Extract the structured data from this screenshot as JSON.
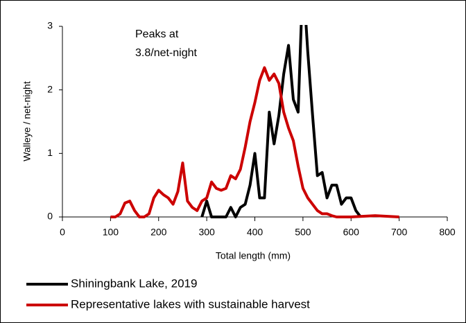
{
  "chart_data": {
    "type": "line",
    "xlabel": "Total length (mm)",
    "ylabel": "Walleye / net-night",
    "annotation": [
      "Peaks at",
      "3.8/net-night"
    ],
    "xlim": [
      0,
      800
    ],
    "xticks": [
      0,
      100,
      200,
      300,
      400,
      500,
      600,
      700,
      800
    ],
    "ylim": [
      0,
      3
    ],
    "yticks": [
      0,
      1,
      2,
      3
    ],
    "series": [
      {
        "name": "Shiningbank Lake, 2019",
        "color": "#000000",
        "x": [
          290,
          300,
          310,
          320,
          330,
          340,
          350,
          360,
          370,
          380,
          390,
          400,
          410,
          420,
          430,
          440,
          450,
          460,
          470,
          480,
          490,
          500,
          510,
          520,
          530,
          540,
          550,
          560,
          570,
          580,
          590,
          600,
          610,
          620
        ],
        "values": [
          0,
          0.25,
          0,
          0,
          0,
          0,
          0.15,
          0,
          0.15,
          0.2,
          0.5,
          1.0,
          0.3,
          0.3,
          1.65,
          1.15,
          1.6,
          2.25,
          2.7,
          1.85,
          1.65,
          3.8,
          2.6,
          1.6,
          0.65,
          0.7,
          0.3,
          0.5,
          0.5,
          0.2,
          0.3,
          0.3,
          0.1,
          0
        ]
      },
      {
        "name": "Representative lakes with sustainable harvest",
        "color": "#cc0000",
        "x": [
          100,
          110,
          120,
          130,
          140,
          150,
          160,
          170,
          180,
          190,
          200,
          210,
          220,
          230,
          240,
          250,
          260,
          270,
          280,
          290,
          300,
          310,
          320,
          330,
          340,
          350,
          360,
          370,
          380,
          390,
          400,
          410,
          420,
          430,
          440,
          450,
          460,
          470,
          480,
          490,
          500,
          510,
          520,
          530,
          540,
          550,
          560,
          570,
          600,
          650,
          700
        ],
        "values": [
          0,
          0,
          0.05,
          0.22,
          0.25,
          0.1,
          0,
          0,
          0.05,
          0.3,
          0.42,
          0.35,
          0.3,
          0.2,
          0.4,
          0.85,
          0.25,
          0.15,
          0.1,
          0.25,
          0.3,
          0.55,
          0.45,
          0.42,
          0.45,
          0.65,
          0.6,
          0.75,
          1.1,
          1.5,
          1.8,
          2.15,
          2.35,
          2.15,
          2.25,
          2.1,
          1.65,
          1.4,
          1.2,
          0.8,
          0.45,
          0.3,
          0.2,
          0.1,
          0.05,
          0.05,
          0.02,
          0,
          0,
          0.02,
          0
        ]
      }
    ]
  }
}
